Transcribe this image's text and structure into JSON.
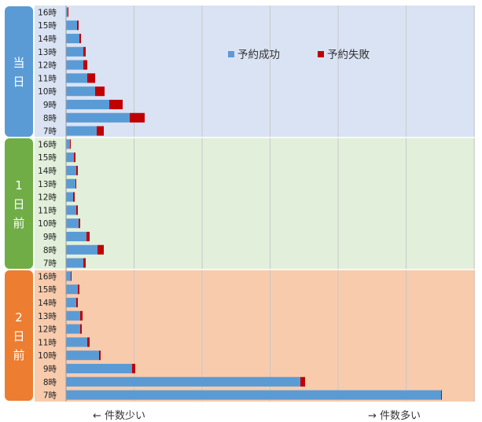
{
  "chart_data": {
    "type": "bar",
    "orientation": "horizontal",
    "stacked": true,
    "categories": [
      "16時",
      "15時",
      "14時",
      "13時",
      "12時",
      "11時",
      "10時",
      "9時",
      "8時",
      "7時"
    ],
    "groups": [
      {
        "label_chars": [
          "当",
          "日"
        ],
        "band_color": "#dae3f3",
        "label_color": "#5b9bd5",
        "success": [
          2,
          14,
          17,
          22,
          22,
          27,
          37,
          55,
          81,
          39
        ],
        "failure": [
          1,
          2,
          2,
          3,
          5,
          10,
          12,
          17,
          19,
          9
        ]
      },
      {
        "label_chars": [
          "1",
          "日",
          "前"
        ],
        "band_color": "#e2efda",
        "label_color": "#70ad47",
        "success": [
          5,
          10,
          13,
          12,
          9,
          13,
          16,
          26,
          40,
          22
        ],
        "failure": [
          1,
          2,
          2,
          1,
          2,
          2,
          2,
          4,
          8,
          3
        ]
      },
      {
        "label_chars": [
          "2",
          "日",
          "前"
        ],
        "band_color": "#f8cbad",
        "label_color": "#ed7d31",
        "success": [
          6,
          15,
          13,
          18,
          18,
          27,
          42,
          84,
          298,
          477
        ],
        "failure": [
          1,
          2,
          2,
          3,
          2,
          3,
          2,
          4,
          6,
          1
        ]
      }
    ],
    "legend": [
      {
        "name": "予約成功",
        "color": "#5b9bd5"
      },
      {
        "name": "予約失敗",
        "color": "#c00000"
      }
    ],
    "legend_position": "top-right",
    "xlim": [
      0,
      520
    ],
    "grid": true,
    "x_notes": {
      "left": "← 件数少い",
      "right": "→ 件数多い"
    }
  }
}
